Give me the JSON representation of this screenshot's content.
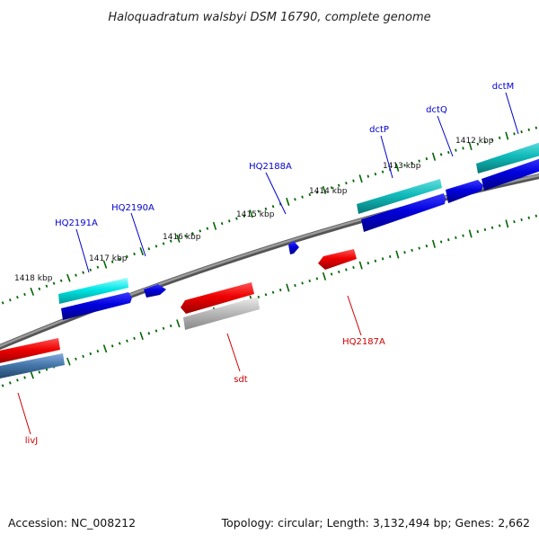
{
  "title": "Haloquadratum walsbyi DSM 16790, complete genome",
  "footer": {
    "accession": "Accession: NC_008212",
    "summary": "Topology: circular; Length: 3,132,494 bp; Genes: 2,662"
  },
  "scale": {
    "unit": "kbp",
    "ticks": [
      "1418 kbp",
      "1417 kbp",
      "1416 kbp",
      "1415 kbp",
      "1414 kbp",
      "1413 kbp",
      "1412 kbp"
    ]
  },
  "gene_labels": {
    "dctM": "dctM",
    "dctQ": "dctQ",
    "dctP": "dctP",
    "HQ2188A": "HQ2188A",
    "HQ2190A": "HQ2190A",
    "HQ2191A": "HQ2191A",
    "HQ2187A": "HQ2187A",
    "sdt": "sdt",
    "livJ": "livJ"
  },
  "colors": {
    "forward_label": "#0000cc",
    "reverse_label": "#cc0000",
    "backbone": "#7a7a7a",
    "cds_forward": "#0000dd",
    "cds_reverse": "#ee0000",
    "cog_cyan": "#00dddd",
    "cog_teal": "#11bbbb",
    "cog_steel": "#4477aa",
    "cog_gray": "#bbbbbb",
    "tick": "#006600"
  }
}
